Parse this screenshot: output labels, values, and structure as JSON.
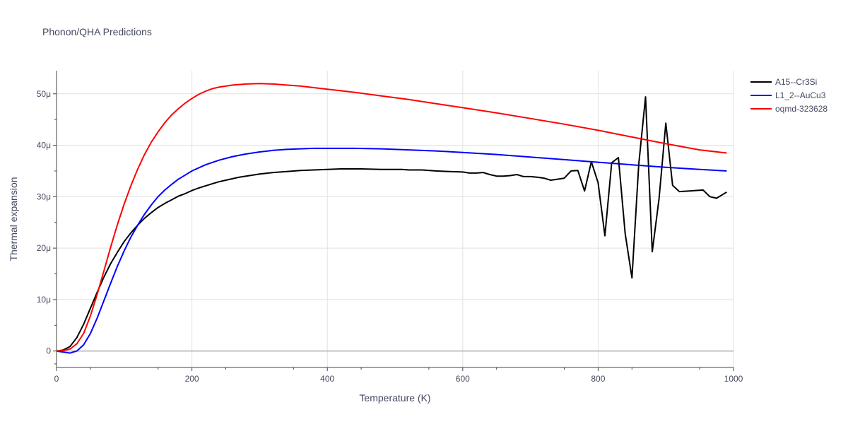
{
  "chart_data": {
    "type": "line",
    "title": "Phonon/QHA Predictions",
    "xlabel": "Temperature (K)",
    "ylabel": "Thermal expansion",
    "xlim": [
      0,
      1000
    ],
    "ylim": [
      -3.2,
      54.5
    ],
    "x_ticks": [
      0,
      200,
      400,
      600,
      800,
      1000
    ],
    "x_tick_labels": [
      "0",
      "200",
      "400",
      "600",
      "800",
      "1000"
    ],
    "y_ticks": [
      0,
      10,
      20,
      30,
      40,
      50
    ],
    "y_tick_labels": [
      "0",
      "10μ",
      "20μ",
      "30μ",
      "40μ",
      "50μ"
    ],
    "y_unit_note": "values in units of 1e-6 (μ)",
    "grid": true,
    "legend_position": "top-right",
    "series": [
      {
        "name": "A15--Cr3Si",
        "color": "#000000",
        "points": [
          [
            0,
            0
          ],
          [
            10,
            0.2
          ],
          [
            20,
            0.9
          ],
          [
            30,
            2.6
          ],
          [
            40,
            5.2
          ],
          [
            50,
            8.3
          ],
          [
            60,
            11.4
          ],
          [
            70,
            14.4
          ],
          [
            80,
            17.0
          ],
          [
            90,
            19.2
          ],
          [
            100,
            21.3
          ],
          [
            110,
            23.0
          ],
          [
            120,
            24.5
          ],
          [
            130,
            25.8
          ],
          [
            140,
            26.9
          ],
          [
            150,
            27.9
          ],
          [
            160,
            28.7
          ],
          [
            170,
            29.4
          ],
          [
            180,
            30.1
          ],
          [
            190,
            30.6
          ],
          [
            200,
            31.2
          ],
          [
            210,
            31.7
          ],
          [
            220,
            32.1
          ],
          [
            230,
            32.5
          ],
          [
            240,
            32.9
          ],
          [
            250,
            33.2
          ],
          [
            260,
            33.5
          ],
          [
            270,
            33.8
          ],
          [
            280,
            34.0
          ],
          [
            300,
            34.4
          ],
          [
            320,
            34.7
          ],
          [
            340,
            34.9
          ],
          [
            360,
            35.1
          ],
          [
            380,
            35.2
          ],
          [
            400,
            35.3
          ],
          [
            420,
            35.4
          ],
          [
            450,
            35.4
          ],
          [
            480,
            35.3
          ],
          [
            510,
            35.3
          ],
          [
            520,
            35.2
          ],
          [
            540,
            35.2
          ],
          [
            560,
            35.0
          ],
          [
            580,
            34.9
          ],
          [
            600,
            34.8
          ],
          [
            610,
            34.6
          ],
          [
            620,
            34.6
          ],
          [
            630,
            34.7
          ],
          [
            640,
            34.3
          ],
          [
            650,
            34.0
          ],
          [
            660,
            34.0
          ],
          [
            670,
            34.1
          ],
          [
            680,
            34.3
          ],
          [
            690,
            33.9
          ],
          [
            700,
            33.9
          ],
          [
            710,
            33.8
          ],
          [
            720,
            33.6
          ],
          [
            730,
            33.2
          ],
          [
            740,
            33.4
          ],
          [
            750,
            33.6
          ],
          [
            760,
            35.0
          ],
          [
            770,
            35.1
          ],
          [
            780,
            31.1
          ],
          [
            790,
            36.8
          ],
          [
            800,
            32.7
          ],
          [
            810,
            22.4
          ],
          [
            820,
            36.6
          ],
          [
            830,
            37.6
          ],
          [
            840,
            22.8
          ],
          [
            850,
            14.2
          ],
          [
            860,
            36.3
          ],
          [
            870,
            49.4
          ],
          [
            880,
            19.3
          ],
          [
            890,
            29.6
          ],
          [
            900,
            44.3
          ],
          [
            910,
            32.2
          ],
          [
            920,
            31.0
          ],
          [
            935,
            31.1
          ],
          [
            955,
            31.3
          ],
          [
            965,
            30.0
          ],
          [
            975,
            29.7
          ],
          [
            985,
            30.5
          ],
          [
            990,
            30.9
          ]
        ]
      },
      {
        "name": "L1_2--AuCu3",
        "color": "#0000ff",
        "points": [
          [
            0,
            0
          ],
          [
            10,
            -0.2
          ],
          [
            20,
            -0.4
          ],
          [
            30,
            0
          ],
          [
            40,
            1.2
          ],
          [
            50,
            3.4
          ],
          [
            60,
            6.4
          ],
          [
            70,
            9.8
          ],
          [
            80,
            13.2
          ],
          [
            90,
            16.5
          ],
          [
            100,
            19.5
          ],
          [
            110,
            22.2
          ],
          [
            120,
            24.5
          ],
          [
            130,
            26.6
          ],
          [
            140,
            28.4
          ],
          [
            150,
            30.0
          ],
          [
            160,
            31.3
          ],
          [
            170,
            32.4
          ],
          [
            180,
            33.4
          ],
          [
            190,
            34.2
          ],
          [
            200,
            35.0
          ],
          [
            220,
            36.2
          ],
          [
            240,
            37.1
          ],
          [
            260,
            37.8
          ],
          [
            280,
            38.3
          ],
          [
            300,
            38.7
          ],
          [
            320,
            39.0
          ],
          [
            340,
            39.2
          ],
          [
            360,
            39.3
          ],
          [
            380,
            39.4
          ],
          [
            400,
            39.4
          ],
          [
            440,
            39.4
          ],
          [
            480,
            39.3
          ],
          [
            520,
            39.1
          ],
          [
            560,
            38.9
          ],
          [
            600,
            38.6
          ],
          [
            650,
            38.2
          ],
          [
            700,
            37.7
          ],
          [
            750,
            37.2
          ],
          [
            800,
            36.7
          ],
          [
            850,
            36.2
          ],
          [
            900,
            35.7
          ],
          [
            950,
            35.3
          ],
          [
            990,
            35.0
          ]
        ]
      },
      {
        "name": "oqmd-323628",
        "color": "#ff0000",
        "points": [
          [
            0,
            0
          ],
          [
            10,
            0.1
          ],
          [
            20,
            0.4
          ],
          [
            30,
            1.4
          ],
          [
            40,
            3.4
          ],
          [
            50,
            6.8
          ],
          [
            60,
            11.0
          ],
          [
            70,
            15.6
          ],
          [
            80,
            20.2
          ],
          [
            90,
            24.6
          ],
          [
            100,
            28.6
          ],
          [
            110,
            32.2
          ],
          [
            120,
            35.4
          ],
          [
            130,
            38.2
          ],
          [
            140,
            40.6
          ],
          [
            150,
            42.6
          ],
          [
            160,
            44.4
          ],
          [
            170,
            45.9
          ],
          [
            180,
            47.1
          ],
          [
            190,
            48.2
          ],
          [
            200,
            49.1
          ],
          [
            210,
            49.9
          ],
          [
            220,
            50.5
          ],
          [
            230,
            51.0
          ],
          [
            240,
            51.3
          ],
          [
            260,
            51.7
          ],
          [
            280,
            51.9
          ],
          [
            300,
            52.0
          ],
          [
            320,
            51.9
          ],
          [
            340,
            51.7
          ],
          [
            360,
            51.5
          ],
          [
            380,
            51.2
          ],
          [
            400,
            50.9
          ],
          [
            440,
            50.3
          ],
          [
            480,
            49.6
          ],
          [
            520,
            48.9
          ],
          [
            560,
            48.1
          ],
          [
            600,
            47.3
          ],
          [
            650,
            46.3
          ],
          [
            700,
            45.2
          ],
          [
            750,
            44.1
          ],
          [
            800,
            42.9
          ],
          [
            850,
            41.6
          ],
          [
            900,
            40.3
          ],
          [
            950,
            39.1
          ],
          [
            990,
            38.5
          ]
        ]
      }
    ]
  }
}
